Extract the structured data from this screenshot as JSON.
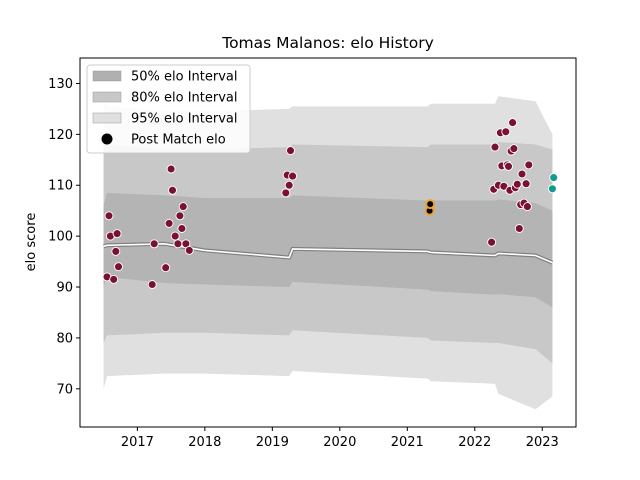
{
  "chart_data": {
    "type": "scatter",
    "title": "Tomas Malanos: elo History",
    "xlabel": "",
    "ylabel": "elo score",
    "xlim": [
      2016.15,
      2023.5
    ],
    "ylim": [
      62.5,
      135
    ],
    "x_ticks": [
      2017,
      2018,
      2019,
      2020,
      2021,
      2022,
      2023
    ],
    "x_tick_labels": [
      "2017",
      "2018",
      "2019",
      "2020",
      "2021",
      "2022",
      "2023"
    ],
    "y_ticks": [
      70,
      80,
      90,
      100,
      110,
      120,
      130
    ],
    "y_tick_labels": [
      "70",
      "80",
      "90",
      "100",
      "110",
      "120",
      "130"
    ],
    "grid": false,
    "legend_position": "top-left",
    "legend": [
      {
        "label": "50% elo Interval",
        "color": "#b0b0b0",
        "kind": "patch"
      },
      {
        "label": "80% elo Interval",
        "color": "#c8c8c8",
        "kind": "patch"
      },
      {
        "label": "95% elo Interval",
        "color": "#e0e0e0",
        "kind": "patch"
      },
      {
        "label": "Post Match elo",
        "color": "#000000",
        "kind": "marker"
      }
    ],
    "colors": {
      "band_95": "#e0e0e0",
      "band_80": "#c8c8c8",
      "band_50": "#b4b4b4",
      "median_line": "#ffffff",
      "median_shadow": "#808080",
      "points_default": "#7a1035",
      "points_2021": "#000000",
      "points_2021_edge": "#f0a030",
      "points_2023": "#0f9b8e"
    },
    "band_x": [
      2016.5,
      2016.55,
      2017.4,
      2018.0,
      2019.25,
      2019.3,
      2021.3,
      2021.35,
      2022.3,
      2022.35,
      2022.9,
      2023.15
    ],
    "median": [
      98.0,
      98.2,
      98.5,
      97.2,
      95.8,
      97.5,
      97.0,
      96.8,
      96.2,
      96.6,
      96.2,
      94.8
    ],
    "band_50": {
      "lower": [
        90.0,
        92.0,
        90.8,
        90.5,
        90.0,
        91.0,
        89.5,
        89.2,
        88.5,
        88.6,
        88.0,
        86.0
      ],
      "upper": [
        106.0,
        108.5,
        108.0,
        107.5,
        107.5,
        108.0,
        107.0,
        107.0,
        107.0,
        107.2,
        106.5,
        105.0
      ]
    },
    "band_80": {
      "lower": [
        79.0,
        80.5,
        81.0,
        81.0,
        80.5,
        81.5,
        80.0,
        79.5,
        79.0,
        79.0,
        77.8,
        75.0
      ],
      "upper": [
        119.0,
        118.0,
        117.0,
        117.0,
        117.5,
        118.0,
        117.5,
        118.0,
        118.0,
        118.5,
        118.0,
        117.0
      ]
    },
    "band_95": {
      "lower": [
        70.0,
        72.5,
        73.0,
        73.0,
        72.5,
        73.5,
        72.0,
        71.5,
        71.0,
        69.0,
        66.0,
        68.5
      ],
      "upper": [
        127.0,
        125.5,
        124.5,
        124.5,
        125.0,
        125.5,
        125.5,
        126.0,
        126.0,
        127.5,
        126.5,
        120.0
      ]
    },
    "series": [
      {
        "name": "Post Match elo",
        "points": [
          {
            "x": 2016.55,
            "y": 92.0,
            "group": "default"
          },
          {
            "x": 2016.58,
            "y": 104.0,
            "group": "default"
          },
          {
            "x": 2016.6,
            "y": 100.0,
            "group": "default"
          },
          {
            "x": 2016.65,
            "y": 91.5,
            "group": "default"
          },
          {
            "x": 2016.68,
            "y": 97.0,
            "group": "default"
          },
          {
            "x": 2016.7,
            "y": 100.5,
            "group": "default"
          },
          {
            "x": 2016.72,
            "y": 94.0,
            "group": "default"
          },
          {
            "x": 2017.22,
            "y": 90.5,
            "group": "default"
          },
          {
            "x": 2017.25,
            "y": 98.5,
            "group": "default"
          },
          {
            "x": 2017.42,
            "y": 93.8,
            "group": "default"
          },
          {
            "x": 2017.47,
            "y": 102.5,
            "group": "default"
          },
          {
            "x": 2017.5,
            "y": 113.2,
            "group": "default"
          },
          {
            "x": 2017.52,
            "y": 109.0,
            "group": "default"
          },
          {
            "x": 2017.56,
            "y": 100.0,
            "group": "default"
          },
          {
            "x": 2017.6,
            "y": 98.5,
            "group": "default"
          },
          {
            "x": 2017.63,
            "y": 104.0,
            "group": "default"
          },
          {
            "x": 2017.66,
            "y": 101.5,
            "group": "default"
          },
          {
            "x": 2017.68,
            "y": 105.8,
            "group": "default"
          },
          {
            "x": 2017.72,
            "y": 98.5,
            "group": "default"
          },
          {
            "x": 2017.77,
            "y": 97.2,
            "group": "default"
          },
          {
            "x": 2019.2,
            "y": 108.5,
            "group": "default"
          },
          {
            "x": 2019.22,
            "y": 112.0,
            "group": "default"
          },
          {
            "x": 2019.25,
            "y": 110.0,
            "group": "default"
          },
          {
            "x": 2019.27,
            "y": 116.8,
            "group": "default"
          },
          {
            "x": 2019.3,
            "y": 111.8,
            "group": "default"
          },
          {
            "x": 2021.33,
            "y": 105.0,
            "group": "2021"
          },
          {
            "x": 2021.34,
            "y": 106.3,
            "group": "2021"
          },
          {
            "x": 2022.25,
            "y": 98.8,
            "group": "default"
          },
          {
            "x": 2022.28,
            "y": 109.2,
            "group": "default"
          },
          {
            "x": 2022.3,
            "y": 117.5,
            "group": "default"
          },
          {
            "x": 2022.35,
            "y": 110.0,
            "group": "default"
          },
          {
            "x": 2022.38,
            "y": 120.3,
            "group": "default"
          },
          {
            "x": 2022.4,
            "y": 113.8,
            "group": "default"
          },
          {
            "x": 2022.43,
            "y": 109.8,
            "group": "default"
          },
          {
            "x": 2022.46,
            "y": 120.5,
            "group": "default"
          },
          {
            "x": 2022.48,
            "y": 114.0,
            "group": "default"
          },
          {
            "x": 2022.5,
            "y": 113.7,
            "group": "default"
          },
          {
            "x": 2022.52,
            "y": 109.0,
            "group": "default"
          },
          {
            "x": 2022.54,
            "y": 116.7,
            "group": "default"
          },
          {
            "x": 2022.56,
            "y": 122.3,
            "group": "default"
          },
          {
            "x": 2022.58,
            "y": 117.2,
            "group": "default"
          },
          {
            "x": 2022.6,
            "y": 109.5,
            "group": "default"
          },
          {
            "x": 2022.63,
            "y": 110.2,
            "group": "default"
          },
          {
            "x": 2022.66,
            "y": 101.5,
            "group": "default"
          },
          {
            "x": 2022.68,
            "y": 106.2,
            "group": "default"
          },
          {
            "x": 2022.7,
            "y": 112.2,
            "group": "default"
          },
          {
            "x": 2022.73,
            "y": 106.5,
            "group": "default"
          },
          {
            "x": 2022.76,
            "y": 110.3,
            "group": "default"
          },
          {
            "x": 2022.78,
            "y": 105.8,
            "group": "default"
          },
          {
            "x": 2022.8,
            "y": 114.0,
            "group": "default"
          },
          {
            "x": 2023.15,
            "y": 109.3,
            "group": "2023"
          },
          {
            "x": 2023.17,
            "y": 111.5,
            "group": "2023"
          }
        ]
      }
    ]
  }
}
